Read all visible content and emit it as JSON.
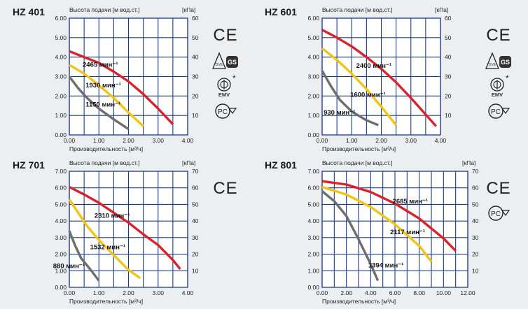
{
  "panels": [
    {
      "model": "HZ 401",
      "ylabel": "Высота подачи [м вод.ст.]",
      "yunit": "[кПа]",
      "xlabel": "Производительность [м³/ч]",
      "chart_data": {
        "type": "line",
        "title": "HZ 401",
        "xlabel": "Производительность [м³/ч]",
        "ylabel": "Высота подачи [м вод.ст.]",
        "y2label": "[кПа]",
        "xlim": [
          0,
          4
        ],
        "ylim": [
          0,
          6
        ],
        "y2lim": [
          0,
          60
        ],
        "xticks": [
          "0.00",
          "1.00",
          "2.00",
          "3.00",
          "4.00"
        ],
        "yticks": [
          "0.00",
          "1.00",
          "2.00",
          "3.00",
          "4.00",
          "5.00",
          "6.00"
        ],
        "y2ticks": [
          "10",
          "20",
          "30",
          "40",
          "50",
          "60"
        ],
        "grid": true,
        "series": [
          {
            "name": "2465 мин⁻¹",
            "color": "#d9232a",
            "label_at": [
              0.45,
              3.5
            ],
            "points": [
              [
                0,
                4.3
              ],
              [
                0.5,
                4.0
              ],
              [
                1.0,
                3.7
              ],
              [
                1.5,
                3.25
              ],
              [
                2.0,
                2.75
              ],
              [
                2.5,
                2.1
              ],
              [
                3.0,
                1.35
              ],
              [
                3.5,
                0.55
              ]
            ]
          },
          {
            "name": "1930 мин⁻¹",
            "color": "#f2c416",
            "label_at": [
              0.55,
              2.45
            ],
            "points": [
              [
                0,
                3.6
              ],
              [
                0.5,
                3.15
              ],
              [
                1.0,
                2.55
              ],
              [
                1.5,
                1.9
              ],
              [
                2.0,
                1.15
              ],
              [
                2.5,
                0.45
              ]
            ]
          },
          {
            "name": "1150 мин⁻¹",
            "color": "#6e6e6e",
            "label_at": [
              0.55,
              1.45
            ],
            "points": [
              [
                0,
                3.0
              ],
              [
                0.3,
                2.4
              ],
              [
                0.6,
                1.9
              ],
              [
                1.0,
                1.35
              ],
              [
                1.5,
                0.8
              ],
              [
                2.0,
                0.3
              ]
            ]
          }
        ]
      },
      "certs": [
        "CE",
        "VDE GS",
        "EMV",
        "PCT"
      ]
    },
    {
      "model": "HZ 601",
      "ylabel": "Высота подачи [м вод.ст.]",
      "yunit": "[кПа]",
      "xlabel": "Производительность [м³/ч]",
      "chart_data": {
        "type": "line",
        "title": "HZ 601",
        "xlabel": "Производительность [м³/ч]",
        "ylabel": "Высота подачи [м вод.ст.]",
        "y2label": "[кПа]",
        "xlim": [
          0,
          4
        ],
        "ylim": [
          0,
          6
        ],
        "y2lim": [
          0,
          60
        ],
        "xticks": [
          "0.00",
          "1.00",
          "2.00",
          "3.00",
          "4.00"
        ],
        "yticks": [
          "0.00",
          "1.00",
          "2.00",
          "3.00",
          "4.00",
          "5.00",
          "6.00"
        ],
        "y2ticks": [
          "10",
          "20",
          "30",
          "40",
          "50",
          "60"
        ],
        "grid": true,
        "series": [
          {
            "name": "2400 мин⁻¹",
            "color": "#d9232a",
            "label_at": [
              1.15,
              3.45
            ],
            "points": [
              [
                0,
                5.4
              ],
              [
                0.5,
                5.0
              ],
              [
                1.0,
                4.55
              ],
              [
                1.5,
                4.0
              ],
              [
                2.0,
                3.4
              ],
              [
                2.5,
                2.7
              ],
              [
                3.0,
                1.9
              ],
              [
                3.5,
                1.05
              ],
              [
                3.85,
                0.45
              ]
            ]
          },
          {
            "name": "1600 мин⁻¹",
            "color": "#f2c416",
            "label_at": [
              0.95,
              1.95
            ],
            "points": [
              [
                0,
                4.45
              ],
              [
                0.5,
                3.85
              ],
              [
                1.0,
                3.15
              ],
              [
                1.5,
                2.35
              ],
              [
                2.0,
                1.45
              ],
              [
                2.5,
                0.5
              ]
            ]
          },
          {
            "name": "930 мин⁻¹",
            "color": "#6e6e6e",
            "label_at": [
              0.05,
              1.05
            ],
            "points": [
              [
                0,
                3.3
              ],
              [
                0.3,
                2.5
              ],
              [
                0.6,
                1.8
              ],
              [
                1.0,
                1.2
              ],
              [
                1.5,
                0.75
              ],
              [
                1.9,
                0.5
              ]
            ]
          }
        ]
      },
      "certs": [
        "CE",
        "VDE GS",
        "EMV",
        "PCT"
      ]
    },
    {
      "model": "HZ 701",
      "ylabel": "Высота подачи [м вод.ст.]",
      "yunit": "[кПа]",
      "xlabel": "Производительность [м³/ч]",
      "chart_data": {
        "type": "line",
        "title": "HZ 701",
        "xlabel": "Производительность [м³/ч]",
        "ylabel": "Высота подачи [м вод.ст.]",
        "y2label": "[кПа]",
        "xlim": [
          0,
          4
        ],
        "ylim": [
          0,
          7
        ],
        "y2lim": [
          0,
          70
        ],
        "xticks": [
          "0.00",
          "1.00",
          "2.00",
          "3.00",
          "4.00"
        ],
        "yticks": [
          "0.00",
          "1.00",
          "2.00",
          "3.00",
          "4.00",
          "5.00",
          "6.00",
          "7.00"
        ],
        "y2ticks": [
          "10",
          "20",
          "30",
          "40",
          "50",
          "60",
          "70"
        ],
        "grid": true,
        "series": [
          {
            "name": "2310 мин⁻¹",
            "color": "#d9232a",
            "label_at": [
              0.85,
              4.2
            ],
            "points": [
              [
                0,
                6.05
              ],
              [
                0.5,
                5.6
              ],
              [
                1.0,
                5.1
              ],
              [
                1.5,
                4.5
              ],
              [
                2.0,
                3.9
              ],
              [
                2.5,
                3.2
              ],
              [
                3.0,
                2.55
              ],
              [
                3.5,
                1.65
              ],
              [
                3.75,
                1.1
              ]
            ]
          },
          {
            "name": "1532 мин⁻¹",
            "color": "#f2c416",
            "label_at": [
              0.7,
              2.3
            ],
            "points": [
              [
                0,
                5.3
              ],
              [
                0.3,
                4.5
              ],
              [
                0.6,
                3.7
              ],
              [
                1.0,
                2.85
              ],
              [
                1.5,
                1.95
              ],
              [
                2.0,
                1.05
              ],
              [
                2.4,
                0.55
              ]
            ]
          },
          {
            "name": "880 мин⁻¹",
            "color": "#6e6e6e",
            "label_at": [
              -0.55,
              1.15
            ],
            "points": [
              [
                0,
                3.4
              ],
              [
                0.2,
                2.5
              ],
              [
                0.4,
                1.75
              ],
              [
                0.7,
                1.1
              ],
              [
                1.0,
                0.4
              ]
            ]
          }
        ]
      },
      "certs": [
        "CE"
      ]
    },
    {
      "model": "HZ 801",
      "ylabel": "Высота подачи [м вод.ст.]",
      "yunit": "[кПа]",
      "xlabel": "Производительность [м³/ч]",
      "chart_data": {
        "type": "line",
        "title": "HZ 801",
        "xlabel": "Производительность [м³/ч]",
        "ylabel": "Высота подачи [м вод.ст.]",
        "y2label": "[кПа]",
        "xlim": [
          0,
          12
        ],
        "ylim": [
          0,
          7
        ],
        "y2lim": [
          0,
          70
        ],
        "xticks": [
          "0.00",
          "2.00",
          "4.00",
          "6.00",
          "8.00",
          "10.00",
          "12.00"
        ],
        "yticks": [
          "0.00",
          "1.00",
          "2.00",
          "3.00",
          "4.00",
          "5.00",
          "6.00",
          "7.00"
        ],
        "y2ticks": [
          "10",
          "20",
          "30",
          "40",
          "50",
          "60",
          "70"
        ],
        "grid": true,
        "series": [
          {
            "name": "2685 мин⁻¹",
            "color": "#d9232a",
            "label_at": [
              5.8,
              5.05
            ],
            "points": [
              [
                0,
                6.4
              ],
              [
                2,
                6.2
              ],
              [
                4,
                5.75
              ],
              [
                6,
                5.05
              ],
              [
                8,
                4.15
              ],
              [
                10,
                2.95
              ],
              [
                11,
                2.2
              ]
            ]
          },
          {
            "name": "2117 мин⁻¹",
            "color": "#f2c416",
            "label_at": [
              5.6,
              3.2
            ],
            "points": [
              [
                0,
                6.05
              ],
              [
                2,
                5.6
              ],
              [
                4,
                4.85
              ],
              [
                6,
                3.8
              ],
              [
                8,
                2.5
              ],
              [
                9,
                1.55
              ]
            ]
          },
          {
            "name": "1394 мин⁻¹",
            "color": "#6e6e6e",
            "label_at": [
              3.8,
              1.2
            ],
            "points": [
              [
                0,
                5.8
              ],
              [
                1,
                5.2
              ],
              [
                2,
                4.3
              ],
              [
                3,
                2.9
              ],
              [
                4,
                1.4
              ],
              [
                4.6,
                0.4
              ]
            ]
          }
        ]
      },
      "certs": [
        "CE",
        "PCT"
      ]
    }
  ]
}
